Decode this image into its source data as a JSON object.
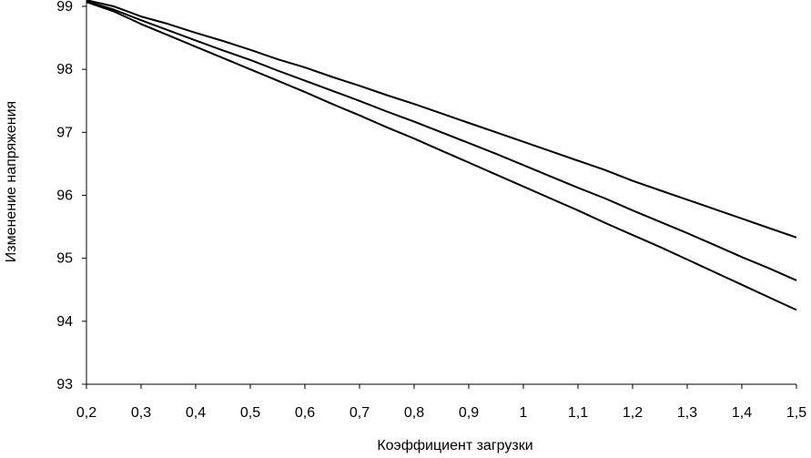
{
  "chart_data": {
    "type": "line",
    "title": "",
    "xlabel": "Коэффициент загрузки",
    "ylabel": "Изменение напряжения",
    "xlim": [
      0.2,
      1.5
    ],
    "ylim": [
      93,
      99
    ],
    "x_ticks": [
      0.2,
      0.3,
      0.4,
      0.5,
      0.6,
      0.7,
      0.8,
      0.9,
      1,
      1.1,
      1.2,
      1.3,
      1.4,
      1.5
    ],
    "x_tick_labels": [
      "0,2",
      "0,3",
      "0,4",
      "0,5",
      "0,6",
      "0,7",
      "0,8",
      "0,9",
      "1",
      "1,1",
      "1,2",
      "1,3",
      "1,4",
      "1,5"
    ],
    "y_ticks": [
      93,
      94,
      95,
      96,
      97,
      98,
      99
    ],
    "y_tick_labels": [
      "93",
      "94",
      "95",
      "96",
      "97",
      "98",
      "99"
    ],
    "grid": false,
    "legend": "none",
    "line_color": "#000000",
    "x": [
      0.2,
      0.25,
      0.3,
      0.35,
      0.4,
      0.45,
      0.5,
      0.55,
      0.6,
      0.65,
      0.7,
      0.75,
      0.8,
      0.85,
      0.9,
      0.95,
      1.0,
      1.05,
      1.1,
      1.15,
      1.2,
      1.25,
      1.3,
      1.35,
      1.4,
      1.45,
      1.5
    ],
    "series": [
      {
        "values": [
          99.1,
          99.0,
          98.84,
          98.72,
          98.58,
          98.45,
          98.31,
          98.16,
          98.03,
          97.88,
          97.74,
          97.59,
          97.45,
          97.3,
          97.15,
          97.0,
          96.85,
          96.7,
          96.55,
          96.4,
          96.23,
          96.08,
          95.93,
          95.78,
          95.63,
          95.48,
          95.33
        ]
      },
      {
        "values": [
          99.08,
          98.95,
          98.78,
          98.62,
          98.46,
          98.3,
          98.15,
          97.98,
          97.82,
          97.66,
          97.5,
          97.33,
          97.17,
          97.0,
          96.83,
          96.66,
          96.48,
          96.3,
          96.12,
          95.95,
          95.76,
          95.58,
          95.4,
          95.21,
          95.02,
          94.84,
          94.65
        ]
      },
      {
        "values": [
          99.07,
          98.92,
          98.72,
          98.54,
          98.36,
          98.18,
          98.0,
          97.82,
          97.64,
          97.45,
          97.27,
          97.08,
          96.9,
          96.71,
          96.52,
          96.33,
          96.14,
          95.95,
          95.76,
          95.56,
          95.37,
          95.18,
          94.98,
          94.78,
          94.58,
          94.38,
          94.18
        ]
      }
    ]
  }
}
